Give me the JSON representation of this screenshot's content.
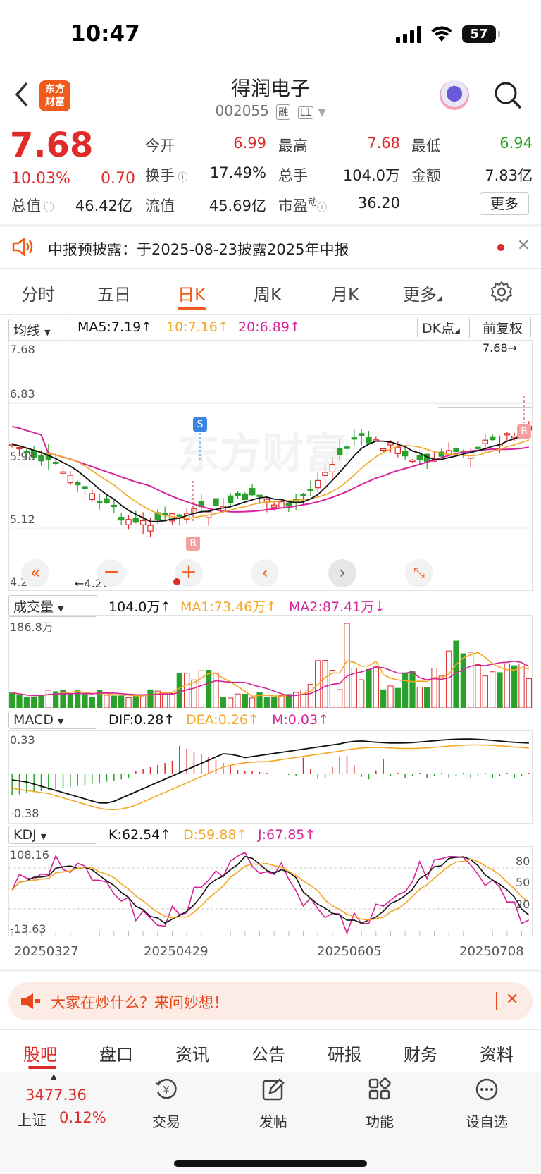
{
  "status": {
    "time": "10:47",
    "battery": "57"
  },
  "header": {
    "back_icon": "chevron-left-icon",
    "logo_line1": "东方",
    "logo_line2": "财富",
    "stock_name": "得润电子",
    "stock_code": "002055",
    "tag1": "融",
    "tag2": "L1"
  },
  "quote": {
    "price": "7.68",
    "change_pct": "10.03%",
    "change_amt": "0.70",
    "open_label": "今开",
    "open": "6.99",
    "high_label": "最高",
    "high": "7.68",
    "low_label": "最低",
    "low": "6.94",
    "turnover_label": "换手",
    "turnover": "17.49%",
    "volume_label": "总手",
    "volume": "104.0万",
    "amount_label": "金额",
    "amount": "7.83亿",
    "mktcap_label": "总值",
    "mktcap": "46.42亿",
    "float_label": "流值",
    "float_cap": "45.69亿",
    "pe_label": "市盈",
    "pe_sup": "动",
    "pe": "36.20",
    "more": "更多"
  },
  "notice": {
    "text": "中报预披露：于2025-08-23披露2025年中报"
  },
  "ktabs": [
    "分时",
    "五日",
    "日K",
    "周K",
    "月K",
    "更多"
  ],
  "kline": {
    "ma_dropdown": "均线",
    "ma5": "MA5:7.19↑",
    "ma10": "10:7.16↑",
    "ma20": "20:6.89↑",
    "dk": "DK点",
    "adjust": "前复权",
    "y_labels": [
      "7.68",
      "6.83",
      "5.98",
      "5.12",
      "4.27"
    ],
    "max_label": "7.68→",
    "min_label": "←4.27",
    "s_mark": "S",
    "b_mark": "B",
    "b_mark2": "B"
  },
  "volume": {
    "dropdown": "成交量",
    "val": "104.0万↑",
    "ma1": "MA1:73.46万↑",
    "ma2": "MA2:87.41万↓",
    "max_label": "186.8万"
  },
  "macd": {
    "dropdown": "MACD",
    "dif": "DIF:0.28↑",
    "dea": "DEA:0.26↑",
    "m": "M:0.03↑",
    "top": "0.33",
    "bottom": "-0.38"
  },
  "kdj": {
    "dropdown": "KDJ",
    "k": "K:62.54↑",
    "d": "D:59.88↑",
    "j": "J:67.85↑",
    "top": "108.16",
    "bottom": "-13.63",
    "l80": "80",
    "l50": "50",
    "l20": "20"
  },
  "dates": [
    "20250327",
    "20250429",
    "20250605",
    "20250708"
  ],
  "banner": {
    "text": "大家在炒什么？来问妙想！"
  },
  "bottom_tabs": [
    "股吧",
    "盘口",
    "资讯",
    "公告",
    "研报",
    "财务",
    "资料"
  ],
  "toolbar": {
    "index_value": "3477.36",
    "index_name": "上证",
    "index_pct": "0.12%",
    "items": [
      "交易",
      "发帖",
      "功能",
      "设自选"
    ]
  },
  "colors": {
    "up": "#e02b2b",
    "down": "#2aa12a",
    "accent": "#f05a1a",
    "ma5": "#111111",
    "ma10": "#f5a623",
    "ma20": "#d6239a"
  }
}
